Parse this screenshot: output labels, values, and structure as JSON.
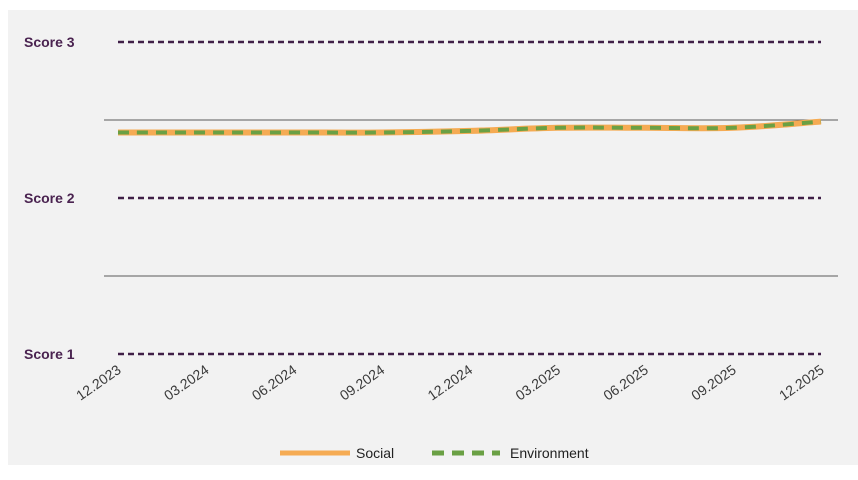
{
  "chart_data": {
    "type": "line",
    "categories": [
      "12.2023",
      "03.2024",
      "06.2024",
      "09.2024",
      "12.2024",
      "03.2025",
      "06.2025",
      "09.2025",
      "12.2025"
    ],
    "y_reference_lines": [
      {
        "label": "Score 3",
        "value": 3
      },
      {
        "label": "Score 2",
        "value": 2
      },
      {
        "label": "Score 1",
        "value": 1
      }
    ],
    "y_gridlines": [
      2.5,
      1.5
    ],
    "ylim": [
      1,
      3
    ],
    "series": [
      {
        "name": "Social",
        "values": [
          2.42,
          2.42,
          2.42,
          2.42,
          2.43,
          2.45,
          2.45,
          2.45,
          2.49
        ]
      },
      {
        "name": "Environment",
        "values": [
          2.42,
          2.42,
          2.42,
          2.42,
          2.43,
          2.45,
          2.45,
          2.45,
          2.49
        ]
      }
    ],
    "legend_position": "bottom",
    "grid": true
  },
  "colors": {
    "background": "#f2f2f2",
    "social": "#f5ab53",
    "environment": "#6aa044",
    "reference_line": "#3f1f47",
    "reference_label": "#4a2350",
    "gridline": "#5a5a5a",
    "tick_label": "#3a3a3a"
  }
}
